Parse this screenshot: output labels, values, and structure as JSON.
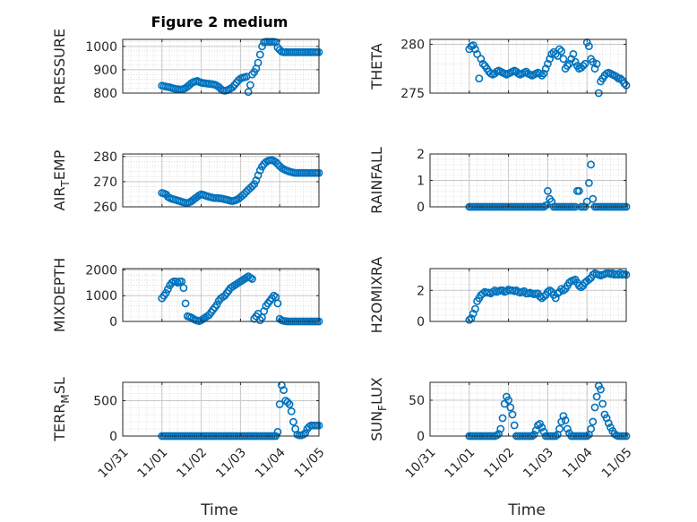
{
  "figure": {
    "title": "Figure 2 medium",
    "xlabel": "Time",
    "xticklabels": [
      "10/31",
      "11/01",
      "11/02",
      "11/03",
      "11/04",
      "11/05"
    ],
    "marker_color": "#0072BD"
  },
  "chart_data": [
    {
      "type": "scatter",
      "ylabel": "PRESSURE",
      "ylim": [
        800,
        1030
      ],
      "yticks": [
        800,
        900,
        1000
      ],
      "grid": true,
      "x": [
        1.0,
        1.05,
        1.1,
        1.15,
        1.2,
        1.25,
        1.3,
        1.35,
        1.4,
        1.45,
        1.5,
        1.55,
        1.6,
        1.65,
        1.7,
        1.75,
        1.8,
        1.85,
        1.9,
        1.95,
        2.0,
        2.05,
        2.1,
        2.15,
        2.2,
        2.25,
        2.3,
        2.35,
        2.4,
        2.45,
        2.5,
        2.55,
        2.6,
        2.65,
        2.7,
        2.75,
        2.8,
        2.85,
        2.9,
        2.95,
        3.0,
        3.05,
        3.1,
        3.15,
        3.2,
        3.25,
        3.3,
        3.35,
        3.4,
        3.45,
        3.5,
        3.55,
        3.6,
        3.65,
        3.7,
        3.75,
        3.8,
        3.85,
        3.9,
        3.95,
        4.0,
        4.05,
        4.1,
        4.15,
        4.2,
        4.25,
        4.3,
        4.35,
        4.4,
        4.45,
        4.5,
        4.55,
        4.6,
        4.65,
        4.7,
        4.75,
        4.8,
        4.85,
        4.9,
        4.95,
        5.0
      ],
      "y": [
        832,
        830,
        828,
        826,
        825,
        822,
        820,
        818,
        817,
        816,
        815,
        818,
        822,
        828,
        835,
        842,
        847,
        850,
        852,
        848,
        845,
        843,
        842,
        841,
        840,
        839,
        838,
        836,
        832,
        826,
        818,
        812,
        810,
        812,
        815,
        820,
        825,
        835,
        845,
        855,
        862,
        866,
        868,
        870,
        805,
        835,
        880,
        890,
        905,
        930,
        965,
        1000,
        1018,
        1020,
        1020,
        1020,
        1020,
        1020,
        1018,
        995,
        985,
        978,
        975,
        975,
        975,
        975,
        975,
        975,
        975,
        975,
        975,
        975,
        975,
        975,
        975,
        975,
        975,
        975,
        975,
        975,
        975
      ]
    },
    {
      "type": "scatter",
      "ylabel": "THETA",
      "ylim": [
        275,
        280.5
      ],
      "yticks": [
        275,
        280
      ],
      "grid": true,
      "x": [
        1.0,
        1.05,
        1.1,
        1.15,
        1.2,
        1.25,
        1.3,
        1.35,
        1.4,
        1.45,
        1.5,
        1.55,
        1.6,
        1.65,
        1.7,
        1.75,
        1.8,
        1.85,
        1.9,
        1.95,
        2.0,
        2.05,
        2.1,
        2.15,
        2.2,
        2.25,
        2.3,
        2.35,
        2.4,
        2.45,
        2.5,
        2.55,
        2.6,
        2.65,
        2.7,
        2.75,
        2.8,
        2.85,
        2.9,
        2.95,
        3.0,
        3.05,
        3.1,
        3.15,
        3.2,
        3.25,
        3.3,
        3.35,
        3.4,
        3.45,
        3.5,
        3.55,
        3.6,
        3.65,
        3.7,
        3.75,
        3.8,
        3.85,
        3.9,
        3.95,
        4.0,
        4.05,
        4.1,
        4.15,
        4.2,
        4.25,
        4.3,
        4.35,
        4.4,
        4.45,
        4.5,
        4.55,
        4.6,
        4.65,
        4.7,
        4.75,
        4.8,
        4.85,
        4.9,
        4.95,
        5.0
      ],
      "y": [
        279.5,
        279.8,
        279.9,
        279.5,
        279.0,
        276.5,
        278.5,
        278.0,
        277.8,
        277.5,
        277.2,
        277.0,
        276.9,
        277.0,
        277.2,
        277.3,
        277.2,
        277.1,
        277.0,
        276.9,
        277.0,
        277.1,
        277.2,
        277.3,
        277.2,
        277.0,
        276.9,
        277.0,
        277.1,
        277.2,
        277.0,
        276.9,
        276.8,
        276.9,
        277.0,
        277.1,
        277.0,
        276.8,
        277.0,
        277.5,
        278.0,
        278.5,
        279.0,
        279.2,
        279.0,
        278.8,
        279.5,
        279.3,
        278.5,
        277.5,
        277.8,
        278.0,
        278.5,
        279.0,
        278.2,
        277.8,
        277.5,
        277.6,
        277.8,
        278.0,
        280.2,
        279.8,
        278.5,
        278.2,
        277.5,
        278.0,
        275.0,
        276.2,
        276.5,
        276.8,
        277.0,
        277.1,
        277.0,
        276.9,
        276.8,
        276.7,
        276.5,
        276.5,
        276.3,
        276.0,
        275.8
      ]
    },
    {
      "type": "scatter",
      "ylabel": "AIR_TEMP",
      "ylim": [
        260,
        281
      ],
      "yticks": [
        260,
        270,
        280
      ],
      "grid": true,
      "x": [
        1.0,
        1.05,
        1.1,
        1.15,
        1.2,
        1.25,
        1.3,
        1.35,
        1.4,
        1.45,
        1.5,
        1.55,
        1.6,
        1.65,
        1.7,
        1.75,
        1.8,
        1.85,
        1.9,
        1.95,
        2.0,
        2.05,
        2.1,
        2.15,
        2.2,
        2.25,
        2.3,
        2.35,
        2.4,
        2.45,
        2.5,
        2.55,
        2.6,
        2.65,
        2.7,
        2.75,
        2.8,
        2.85,
        2.9,
        2.95,
        3.0,
        3.05,
        3.1,
        3.15,
        3.2,
        3.25,
        3.3,
        3.35,
        3.4,
        3.45,
        3.5,
        3.55,
        3.6,
        3.65,
        3.7,
        3.75,
        3.8,
        3.85,
        3.9,
        3.95,
        4.0,
        4.05,
        4.1,
        4.15,
        4.2,
        4.25,
        4.3,
        4.35,
        4.4,
        4.45,
        4.5,
        4.55,
        4.6,
        4.65,
        4.7,
        4.75,
        4.8,
        4.85,
        4.9,
        4.95,
        5.0
      ],
      "y": [
        265.5,
        265.3,
        265.0,
        264.0,
        263.5,
        263.2,
        263.0,
        262.8,
        262.5,
        262.3,
        262.0,
        261.8,
        261.6,
        261.5,
        261.8,
        262.2,
        262.8,
        263.4,
        264.0,
        264.6,
        265.0,
        264.8,
        264.5,
        264.2,
        264.0,
        263.8,
        263.6,
        263.5,
        263.5,
        263.4,
        263.3,
        263.2,
        263.0,
        262.8,
        262.6,
        262.4,
        262.3,
        262.5,
        262.8,
        263.2,
        263.8,
        264.5,
        265.2,
        266.0,
        266.8,
        267.5,
        268.2,
        269.0,
        270.5,
        272.5,
        274.5,
        276.0,
        277.0,
        277.8,
        278.3,
        278.5,
        278.6,
        278.3,
        277.8,
        277.0,
        276.2,
        275.5,
        275.0,
        274.6,
        274.3,
        274.0,
        273.8,
        273.6,
        273.5,
        273.5,
        273.5,
        273.5,
        273.5,
        273.5,
        273.5,
        273.5,
        273.5,
        273.5,
        273.5,
        273.5,
        273.5
      ]
    },
    {
      "type": "scatter",
      "ylabel": "RAINFALL",
      "ylim": [
        0,
        2.0
      ],
      "yticks": [
        0,
        1,
        2
      ],
      "grid": true,
      "x": [
        1.0,
        1.05,
        1.1,
        1.15,
        1.2,
        1.25,
        1.3,
        1.35,
        1.4,
        1.45,
        1.5,
        1.55,
        1.6,
        1.65,
        1.7,
        1.75,
        1.8,
        1.85,
        1.9,
        1.95,
        2.0,
        2.05,
        2.1,
        2.15,
        2.2,
        2.25,
        2.3,
        2.35,
        2.4,
        2.45,
        2.5,
        2.55,
        2.6,
        2.65,
        2.7,
        2.75,
        2.8,
        2.85,
        2.9,
        2.95,
        3.0,
        3.05,
        3.1,
        3.15,
        3.2,
        3.25,
        3.3,
        3.35,
        3.4,
        3.45,
        3.5,
        3.55,
        3.6,
        3.65,
        3.7,
        3.75,
        3.8,
        3.85,
        3.9,
        3.95,
        4.0,
        4.05,
        4.1,
        4.15,
        4.2,
        4.25,
        4.3,
        4.35,
        4.4,
        4.45,
        4.5,
        4.55,
        4.6,
        4.65,
        4.7,
        4.75,
        4.8,
        4.85,
        4.9,
        4.95,
        5.0
      ],
      "y": [
        0,
        0,
        0,
        0,
        0,
        0,
        0,
        0,
        0,
        0,
        0,
        0,
        0,
        0,
        0,
        0,
        0,
        0,
        0,
        0,
        0,
        0,
        0,
        0,
        0,
        0,
        0,
        0,
        0,
        0,
        0,
        0,
        0,
        0,
        0,
        0,
        0,
        0,
        0,
        0.05,
        0.6,
        0.3,
        0.2,
        0,
        0,
        0,
        0,
        0,
        0,
        0,
        0,
        0,
        0,
        0,
        0,
        0.6,
        0.6,
        0,
        0,
        0,
        0.2,
        0.9,
        1.6,
        0.3,
        0,
        0,
        0,
        0,
        0,
        0,
        0,
        0,
        0,
        0,
        0,
        0,
        0,
        0,
        0,
        0,
        0
      ]
    },
    {
      "type": "scatter",
      "ylabel": "MIXDEPTH",
      "ylim": [
        0,
        2050
      ],
      "yticks": [
        0,
        1000,
        2000
      ],
      "grid": true,
      "x": [
        1.0,
        1.05,
        1.1,
        1.15,
        1.2,
        1.25,
        1.3,
        1.35,
        1.4,
        1.45,
        1.5,
        1.55,
        1.6,
        1.65,
        1.7,
        1.75,
        1.8,
        1.85,
        1.9,
        1.95,
        2.0,
        2.05,
        2.1,
        2.15,
        2.2,
        2.25,
        2.3,
        2.35,
        2.4,
        2.45,
        2.5,
        2.55,
        2.6,
        2.65,
        2.7,
        2.75,
        2.8,
        2.85,
        2.9,
        2.95,
        3.0,
        3.05,
        3.1,
        3.15,
        3.2,
        3.25,
        3.3,
        3.35,
        3.4,
        3.45,
        3.5,
        3.55,
        3.6,
        3.65,
        3.7,
        3.75,
        3.8,
        3.85,
        3.9,
        3.95,
        4.0,
        4.05,
        4.1,
        4.15,
        4.2,
        4.25,
        4.3,
        4.35,
        4.4,
        4.45,
        4.5,
        4.55,
        4.6,
        4.65,
        4.7,
        4.75,
        4.8,
        4.85,
        4.9,
        4.95,
        5.0
      ],
      "y": [
        900,
        1000,
        1100,
        1250,
        1400,
        1500,
        1550,
        1550,
        1500,
        1550,
        1550,
        1300,
        700,
        200,
        180,
        150,
        100,
        60,
        30,
        10,
        50,
        100,
        150,
        200,
        250,
        350,
        450,
        550,
        650,
        800,
        900,
        950,
        1000,
        1100,
        1200,
        1300,
        1350,
        1400,
        1450,
        1500,
        1550,
        1600,
        1650,
        1700,
        1750,
        1700,
        1650,
        100,
        200,
        300,
        50,
        150,
        400,
        600,
        700,
        800,
        900,
        1000,
        950,
        700,
        100,
        50,
        20,
        10,
        0,
        0,
        0,
        0,
        0,
        0,
        0,
        0,
        0,
        0,
        0,
        0,
        0,
        0,
        0,
        0,
        0
      ]
    },
    {
      "type": "scatter",
      "ylabel": "H2OMIXRA",
      "ylim": [
        0,
        3.4
      ],
      "yticks": [
        0,
        2
      ],
      "grid": true,
      "x": [
        1.0,
        1.05,
        1.1,
        1.15,
        1.2,
        1.25,
        1.3,
        1.35,
        1.4,
        1.45,
        1.5,
        1.55,
        1.6,
        1.65,
        1.7,
        1.75,
        1.8,
        1.85,
        1.9,
        1.95,
        2.0,
        2.05,
        2.1,
        2.15,
        2.2,
        2.25,
        2.3,
        2.35,
        2.4,
        2.45,
        2.5,
        2.55,
        2.6,
        2.65,
        2.7,
        2.75,
        2.8,
        2.85,
        2.9,
        2.95,
        3.0,
        3.05,
        3.1,
        3.15,
        3.2,
        3.25,
        3.3,
        3.35,
        3.4,
        3.45,
        3.5,
        3.55,
        3.6,
        3.65,
        3.7,
        3.75,
        3.8,
        3.85,
        3.9,
        3.95,
        4.0,
        4.05,
        4.1,
        4.15,
        4.2,
        4.25,
        4.3,
        4.35,
        4.4,
        4.45,
        4.5,
        4.55,
        4.6,
        4.65,
        4.7,
        4.75,
        4.8,
        4.85,
        4.9,
        4.95,
        5.0
      ],
      "y": [
        0.1,
        0.2,
        0.5,
        0.8,
        1.3,
        1.5,
        1.7,
        1.8,
        1.9,
        1.85,
        1.85,
        1.8,
        1.9,
        2.0,
        1.9,
        1.95,
        2.0,
        2.0,
        1.9,
        1.95,
        2.05,
        2.0,
        2.0,
        1.95,
        2.0,
        1.9,
        1.85,
        1.9,
        1.95,
        1.8,
        1.8,
        1.85,
        1.8,
        1.75,
        1.8,
        1.8,
        1.6,
        1.5,
        1.6,
        1.7,
        1.9,
        2.0,
        1.9,
        1.7,
        1.5,
        1.8,
        1.9,
        2.1,
        2.0,
        2.1,
        2.3,
        2.5,
        2.6,
        2.65,
        2.7,
        2.5,
        2.3,
        2.2,
        2.3,
        2.5,
        2.6,
        2.7,
        2.8,
        3.0,
        3.1,
        3.05,
        3.0,
        2.95,
        3.0,
        3.05,
        3.1,
        3.1,
        3.05,
        3.1,
        3.0,
        3.05,
        3.0,
        3.1,
        3.0,
        3.05,
        3.0
      ]
    },
    {
      "type": "scatter",
      "ylabel": "TERR_MSL",
      "ylim": [
        0,
        760
      ],
      "yticks": [
        0,
        500
      ],
      "grid": true,
      "x": [
        1.0,
        1.05,
        1.1,
        1.15,
        1.2,
        1.25,
        1.3,
        1.35,
        1.4,
        1.45,
        1.5,
        1.55,
        1.6,
        1.65,
        1.7,
        1.75,
        1.8,
        1.85,
        1.9,
        1.95,
        2.0,
        2.05,
        2.1,
        2.15,
        2.2,
        2.25,
        2.3,
        2.35,
        2.4,
        2.45,
        2.5,
        2.55,
        2.6,
        2.65,
        2.7,
        2.75,
        2.8,
        2.85,
        2.9,
        2.95,
        3.0,
        3.05,
        3.1,
        3.15,
        3.2,
        3.25,
        3.3,
        3.35,
        3.4,
        3.45,
        3.5,
        3.55,
        3.6,
        3.65,
        3.7,
        3.75,
        3.8,
        3.85,
        3.9,
        3.95,
        4.0,
        4.05,
        4.1,
        4.15,
        4.2,
        4.25,
        4.3,
        4.35,
        4.4,
        4.45,
        4.5,
        4.55,
        4.6,
        4.65,
        4.7,
        4.75,
        4.8,
        4.85,
        4.9,
        4.95,
        5.0
      ],
      "y": [
        0,
        0,
        0,
        0,
        0,
        0,
        0,
        0,
        0,
        0,
        0,
        0,
        0,
        0,
        0,
        0,
        0,
        0,
        0,
        0,
        0,
        0,
        0,
        0,
        0,
        0,
        0,
        0,
        0,
        0,
        0,
        0,
        0,
        0,
        0,
        0,
        0,
        0,
        0,
        0,
        0,
        0,
        0,
        0,
        0,
        0,
        0,
        0,
        0,
        0,
        0,
        0,
        0,
        0,
        0,
        0,
        0,
        0,
        0,
        60,
        450,
        720,
        650,
        500,
        480,
        450,
        350,
        200,
        100,
        20,
        10,
        10,
        20,
        40,
        100,
        130,
        150,
        150,
        150,
        150,
        150
      ]
    },
    {
      "type": "scatter",
      "ylabel": "SUN_FLUX",
      "ylim": [
        0,
        75
      ],
      "yticks": [
        0,
        50
      ],
      "grid": true,
      "x": [
        1.0,
        1.05,
        1.1,
        1.15,
        1.2,
        1.25,
        1.3,
        1.35,
        1.4,
        1.45,
        1.5,
        1.55,
        1.6,
        1.65,
        1.7,
        1.75,
        1.8,
        1.85,
        1.9,
        1.95,
        2.0,
        2.05,
        2.1,
        2.15,
        2.2,
        2.25,
        2.3,
        2.35,
        2.4,
        2.45,
        2.5,
        2.55,
        2.6,
        2.65,
        2.7,
        2.75,
        2.8,
        2.85,
        2.9,
        2.95,
        3.0,
        3.05,
        3.1,
        3.15,
        3.2,
        3.25,
        3.3,
        3.35,
        3.4,
        3.45,
        3.5,
        3.55,
        3.6,
        3.65,
        3.7,
        3.75,
        3.8,
        3.85,
        3.9,
        3.95,
        4.0,
        4.05,
        4.1,
        4.15,
        4.2,
        4.25,
        4.3,
        4.35,
        4.4,
        4.45,
        4.5,
        4.55,
        4.6,
        4.65,
        4.7,
        4.75,
        4.8,
        4.85,
        4.9,
        4.95,
        5.0
      ],
      "y": [
        0,
        0,
        0,
        0,
        0,
        0,
        0,
        0,
        0,
        0,
        0,
        0,
        0,
        0,
        1,
        3,
        10,
        25,
        45,
        55,
        50,
        40,
        30,
        15,
        0,
        0,
        0,
        0,
        0,
        0,
        0,
        0,
        0,
        2,
        8,
        15,
        17,
        12,
        6,
        0,
        0,
        0,
        0,
        0,
        0,
        2,
        10,
        20,
        28,
        22,
        10,
        4,
        0,
        0,
        0,
        0,
        0,
        0,
        0,
        0,
        0,
        2,
        10,
        20,
        40,
        55,
        70,
        65,
        45,
        30,
        25,
        18,
        12,
        7,
        3,
        1,
        0,
        0,
        0,
        0,
        0
      ]
    }
  ]
}
